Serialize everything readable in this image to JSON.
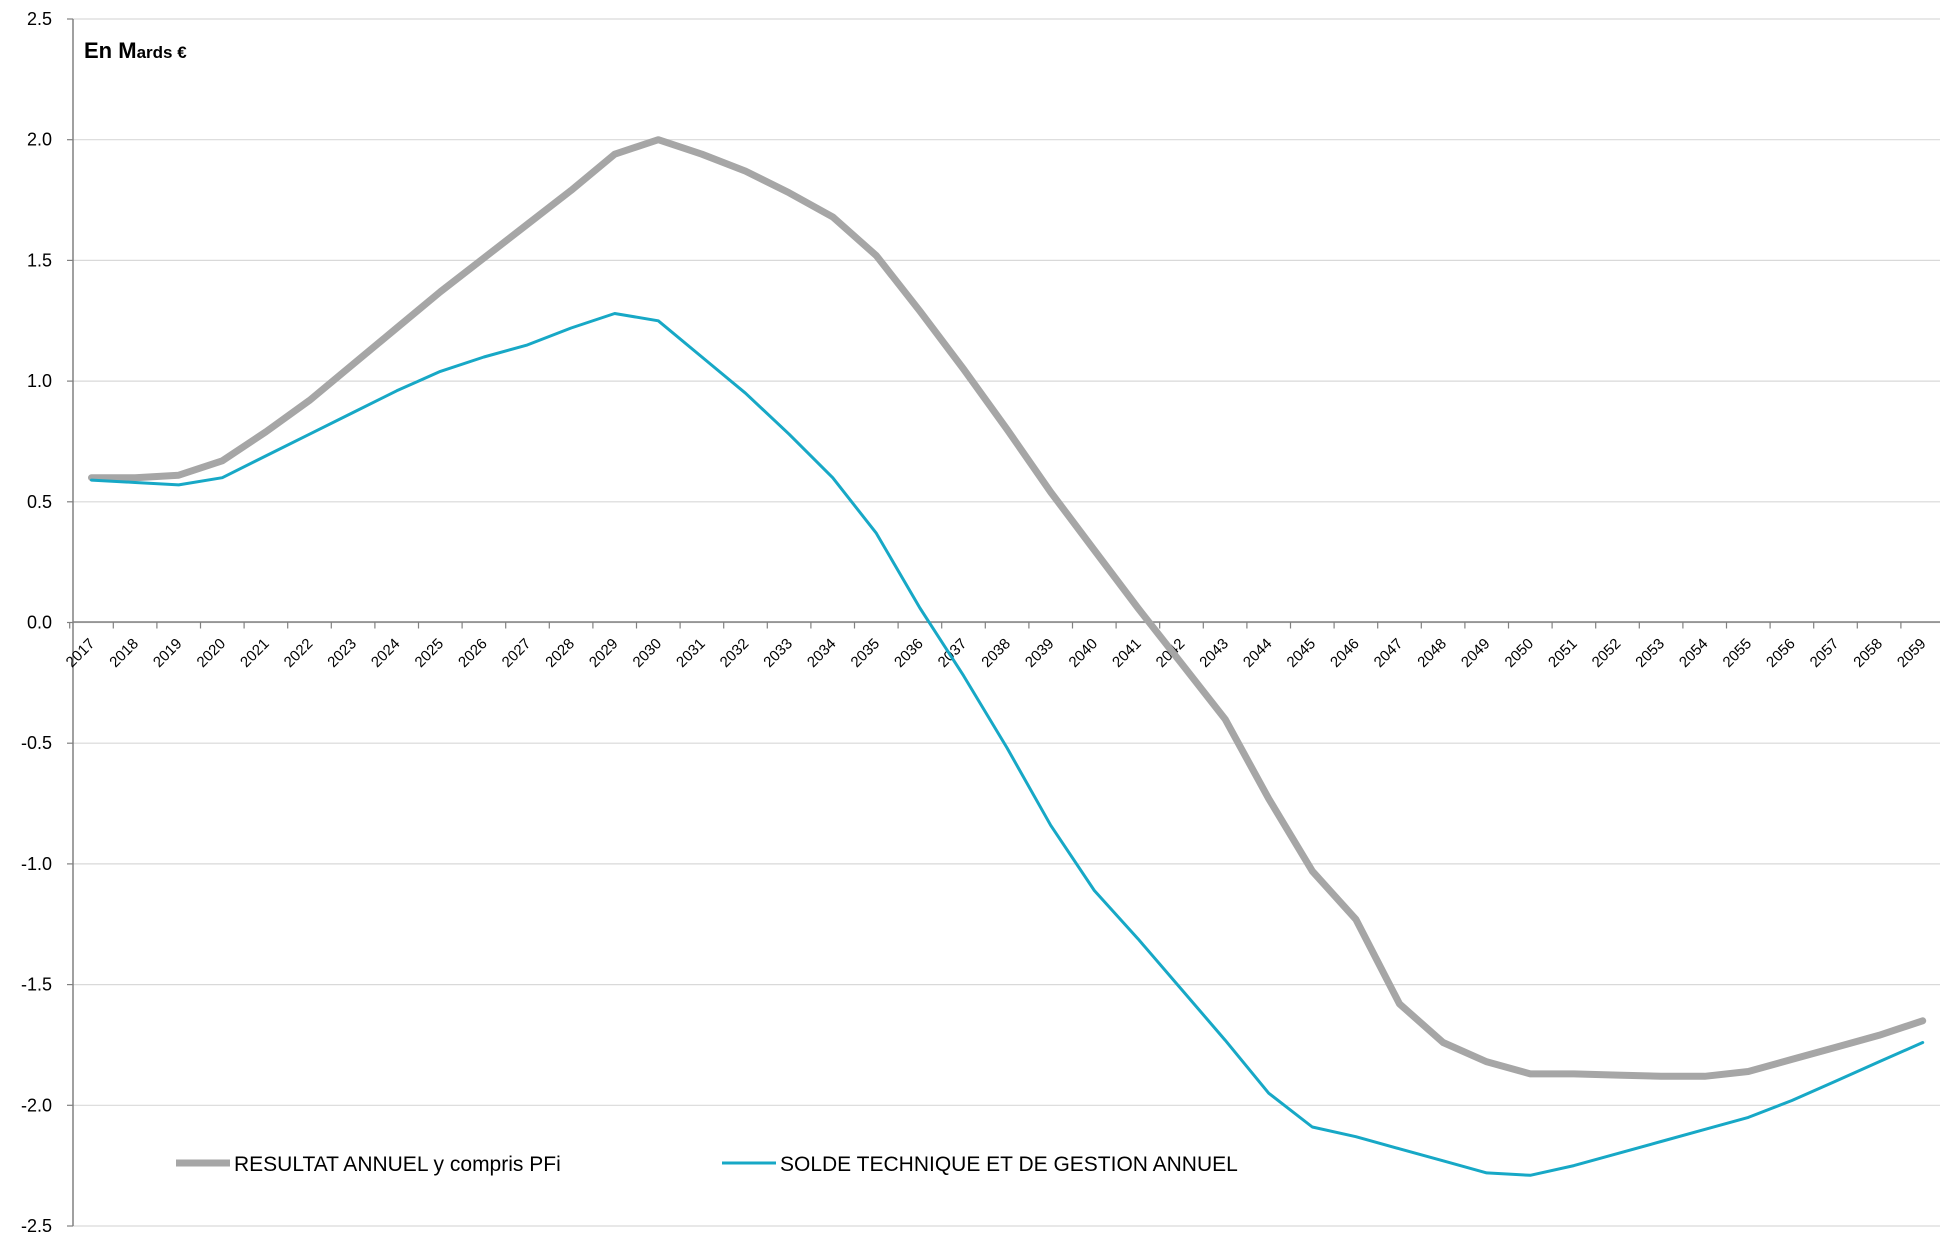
{
  "chart_data": {
    "type": "line",
    "unit_label": {
      "big": "En M",
      "small": "ards €"
    },
    "categories": [
      "2017",
      "2018",
      "2019",
      "2020",
      "2021",
      "2022",
      "2023",
      "2024",
      "2025",
      "2026",
      "2027",
      "2028",
      "2029",
      "2030",
      "2031",
      "2032",
      "2033",
      "2034",
      "2035",
      "2036",
      "2037",
      "2038",
      "2039",
      "2040",
      "2041",
      "2042",
      "2043",
      "2044",
      "2045",
      "2046",
      "2047",
      "2048",
      "2049",
      "2050",
      "2051",
      "2052",
      "2053",
      "2054",
      "2055",
      "2056",
      "2057",
      "2058",
      "2059"
    ],
    "ylim": [
      -2.5,
      2.5
    ],
    "yticks": [
      "2.5",
      "2.0",
      "1.5",
      "1.0",
      "0.5",
      "0.0",
      "-0.5",
      "-1.0",
      "-1.5",
      "-2.0",
      "-2.5"
    ],
    "grid": true,
    "legend_position": "bottom-left",
    "series": [
      {
        "name": "RESULTAT ANNUEL y compris PFi",
        "color": "#a6a6a6",
        "values": [
          0.6,
          0.6,
          0.61,
          0.67,
          0.79,
          0.92,
          1.07,
          1.22,
          1.37,
          1.51,
          1.65,
          1.79,
          1.94,
          2.0,
          1.94,
          1.87,
          1.78,
          1.68,
          1.52,
          1.29,
          1.05,
          0.8,
          0.54,
          0.3,
          0.06,
          -0.17,
          -0.4,
          -0.73,
          -1.03,
          -1.23,
          -1.58,
          -1.74,
          -1.82,
          -1.87,
          -1.87,
          -1.875,
          -1.88,
          -1.88,
          -1.86,
          -1.81,
          -1.76,
          -1.71,
          -1.65
        ]
      },
      {
        "name": "SOLDE TECHNIQUE ET DE GESTION ANNUEL",
        "color": "#17a8c6",
        "values": [
          0.59,
          0.58,
          0.57,
          0.6,
          0.69,
          0.78,
          0.87,
          0.96,
          1.04,
          1.1,
          1.15,
          1.22,
          1.28,
          1.25,
          1.1,
          0.95,
          0.78,
          0.6,
          0.37,
          0.06,
          -0.22,
          -0.52,
          -0.84,
          -1.11,
          -1.31,
          -1.52,
          -1.73,
          -1.95,
          -2.09,
          -2.13,
          -2.18,
          -2.23,
          -2.28,
          -2.29,
          -2.25,
          -2.2,
          -2.15,
          -2.1,
          -2.05,
          -1.98,
          -1.9,
          -1.82,
          -1.74
        ]
      }
    ]
  }
}
